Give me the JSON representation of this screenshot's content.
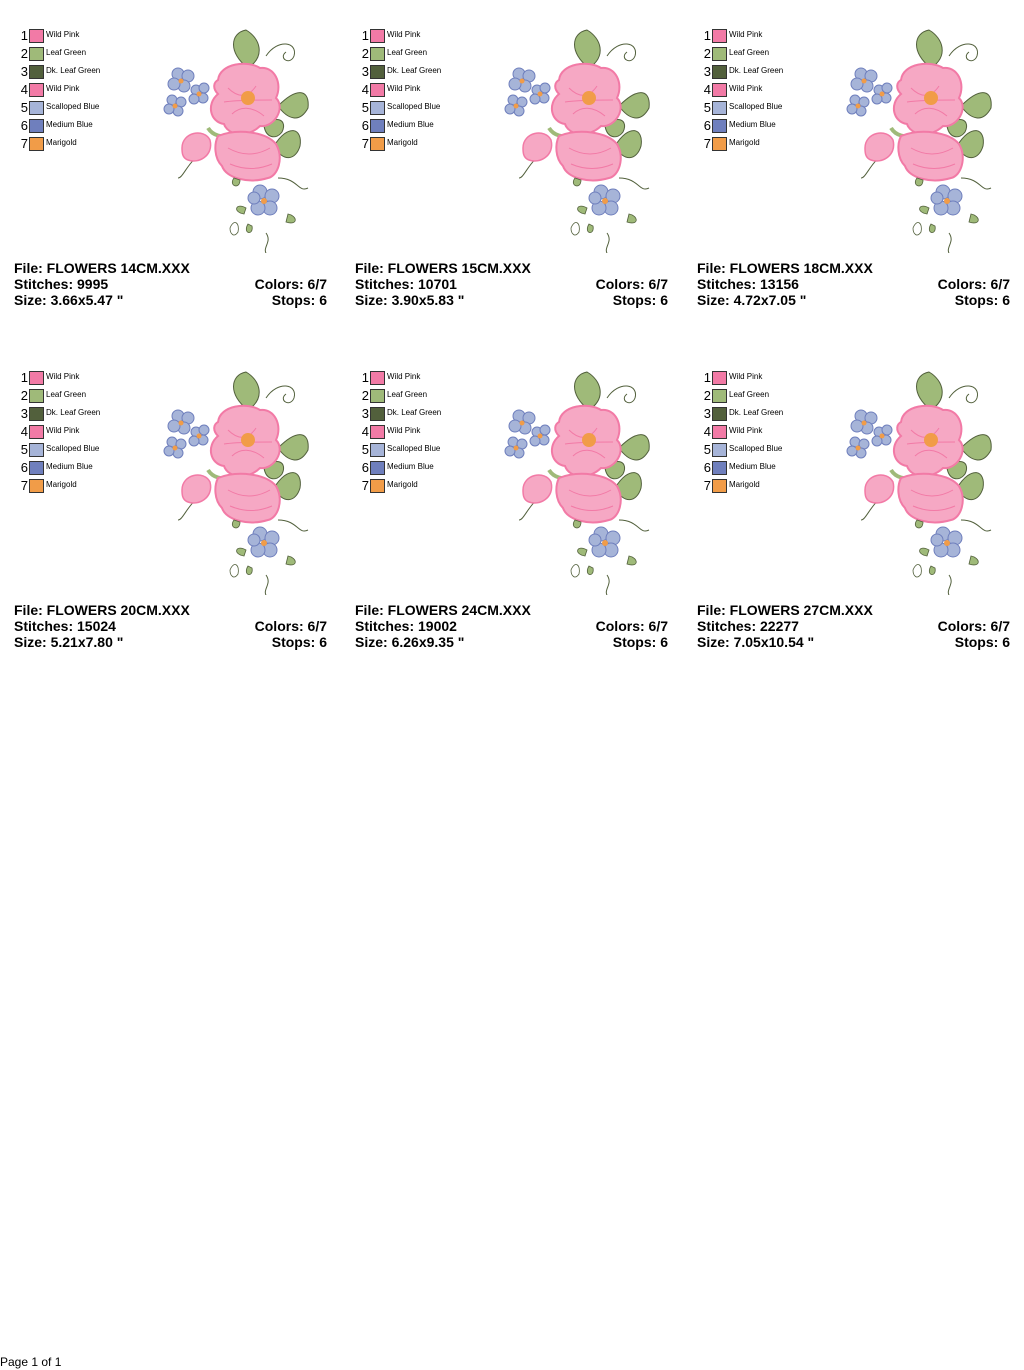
{
  "thread_legend": [
    {
      "num": "1",
      "name": "Wild Pink",
      "color": "#f27aa6"
    },
    {
      "num": "2",
      "name": "Leaf Green",
      "color": "#9fba79"
    },
    {
      "num": "3",
      "name": "Dk. Leaf Green",
      "color": "#52603c"
    },
    {
      "num": "4",
      "name": "Wild Pink",
      "color": "#f27aa6"
    },
    {
      "num": "5",
      "name": "Scalloped Blue",
      "color": "#a6b4d8"
    },
    {
      "num": "6",
      "name": "Medium Blue",
      "color": "#6f7fbd"
    },
    {
      "num": "7",
      "name": "Marigold",
      "color": "#f19c48"
    }
  ],
  "labels": {
    "file": "File:",
    "stitches": "Stitches:",
    "size": "Size:",
    "colors": "Colors:",
    "stops": "Stops:"
  },
  "designs": [
    {
      "file": "FLOWERS 14CM.XXX",
      "stitches": "9995",
      "size": "3.66x5.47 \"",
      "colors": "6/7",
      "stops": "6"
    },
    {
      "file": "FLOWERS 15CM.XXX",
      "stitches": "10701",
      "size": "3.90x5.83 \"",
      "colors": "6/7",
      "stops": "6"
    },
    {
      "file": "FLOWERS 18CM.XXX",
      "stitches": "13156",
      "size": "4.72x7.05 \"",
      "colors": "6/7",
      "stops": "6"
    },
    {
      "file": "FLOWERS 20CM.XXX",
      "stitches": "15024",
      "size": "5.21x7.80 \"",
      "colors": "6/7",
      "stops": "6"
    },
    {
      "file": "FLOWERS 24CM.XXX",
      "stitches": "19002",
      "size": "6.26x9.35 \"",
      "colors": "6/7",
      "stops": "6"
    },
    {
      "file": "FLOWERS 27CM.XXX",
      "stitches": "22277",
      "size": "7.05x10.54 \"",
      "colors": "6/7",
      "stops": "6"
    }
  ],
  "footer": "Page 1 of 1"
}
